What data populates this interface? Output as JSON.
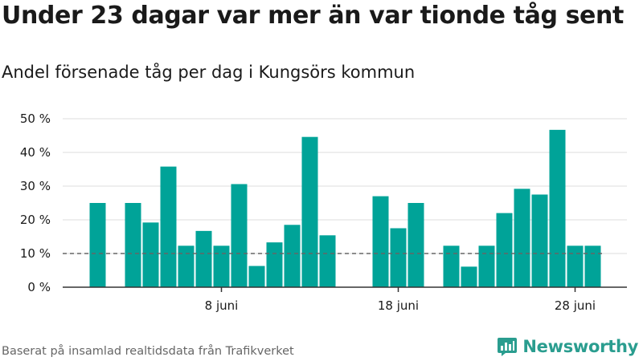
{
  "header": {
    "title": "Under 23 dagar var mer än var tionde tåg sent",
    "subtitle": "Andel försenade tåg per dag i Kungsörs kommun"
  },
  "footer": {
    "source": "Baserat på insamlad realtidsdata från Trafikverket",
    "brand": "Newsworthy",
    "brand_icon": "bar-chart-speech-bubble-icon"
  },
  "colors": {
    "bar": "#00a398",
    "grid": "#dddddd",
    "axis": "#333333",
    "reference_line": "#666666",
    "brand": "#2a9d8f",
    "text": "#1a1a1a"
  },
  "chart_data": {
    "type": "bar",
    "title": "Under 23 dagar var mer än var tionde tåg sent",
    "subtitle": "Andel försenade tåg per dag i Kungsörs kommun",
    "x": [
      "1 juni",
      "2 juni",
      "3 juni",
      "4 juni",
      "5 juni",
      "6 juni",
      "7 juni",
      "8 juni",
      "9 juni",
      "10 juni",
      "11 juni",
      "12 juni",
      "13 juni",
      "14 juni",
      "15 juni",
      "16 juni",
      "17 juni",
      "18 juni",
      "19 juni",
      "20 juni",
      "21 juni",
      "22 juni",
      "23 juni",
      "24 juni",
      "25 juni",
      "26 juni",
      "27 juni",
      "28 juni",
      "29 juni",
      "30 juni"
    ],
    "values": [
      25,
      null,
      25,
      19.2,
      35.8,
      12.3,
      16.7,
      12.3,
      30.6,
      6.3,
      13.3,
      18.5,
      44.6,
      15.4,
      null,
      null,
      27,
      17.5,
      25,
      null,
      12.3,
      6.1,
      12.3,
      22,
      29.2,
      27.5,
      46.7,
      12.3,
      12.3,
      null
    ],
    "value_unit": "%",
    "reference_line": 10,
    "x_ticks": [
      {
        "index": 7,
        "label": "8 juni"
      },
      {
        "index": 17,
        "label": "18 juni"
      },
      {
        "index": 27,
        "label": "28 juni"
      }
    ],
    "y_ticks": [
      "0 %",
      "10 %",
      "20 %",
      "30 %",
      "40 %",
      "50 %"
    ],
    "ylim": [
      0,
      50
    ],
    "grid": true,
    "legend": "none"
  }
}
